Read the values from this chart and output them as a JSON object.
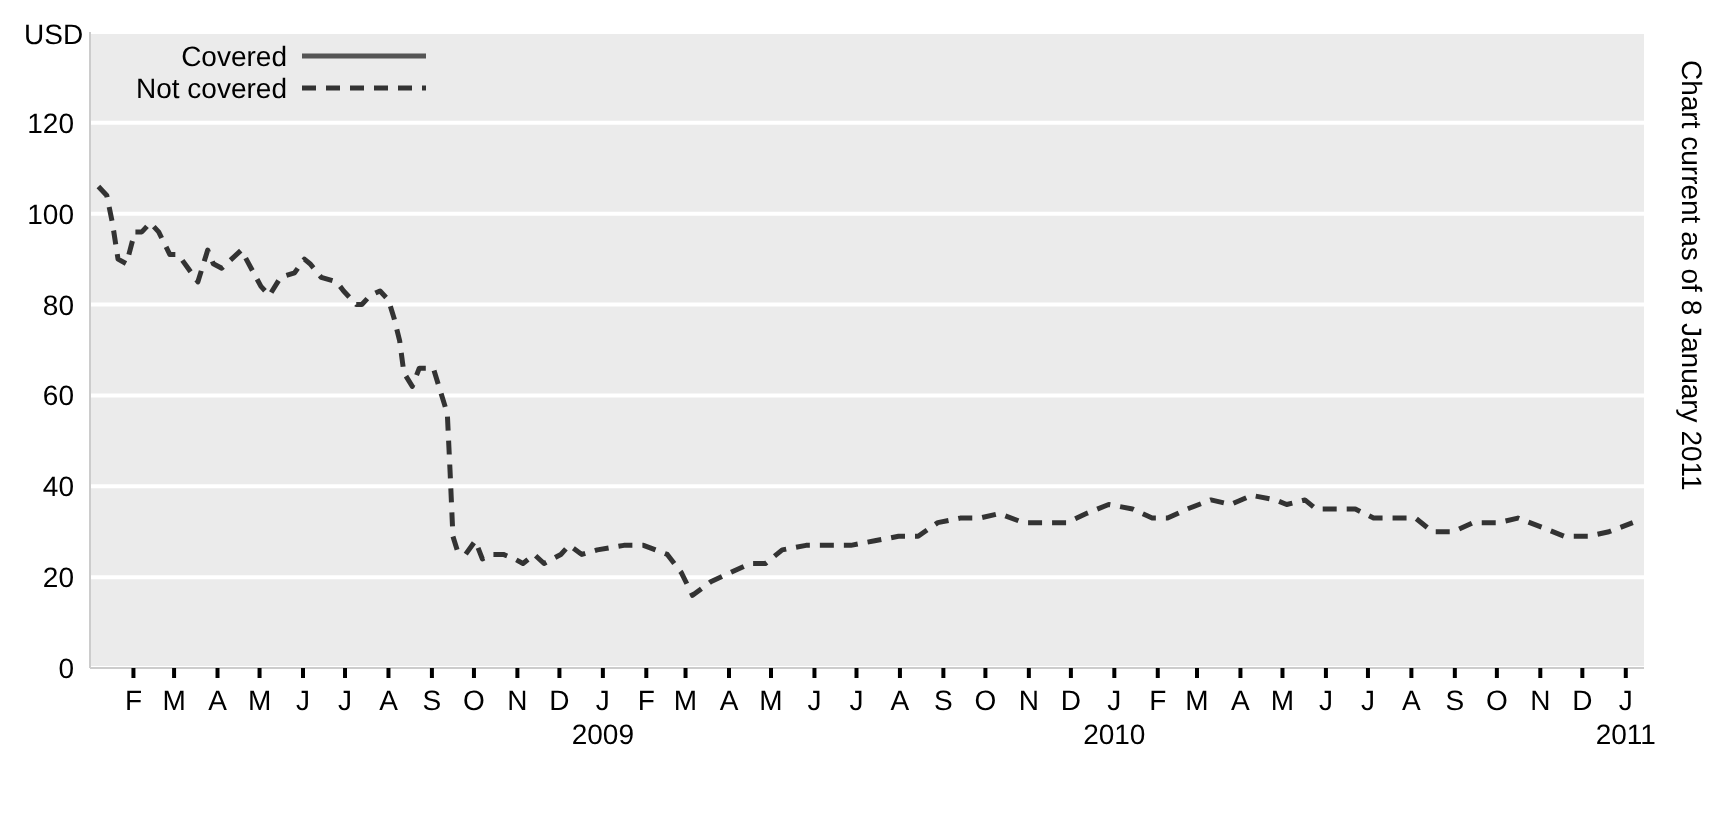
{
  "chart_data": {
    "type": "line",
    "ylabel": "USD",
    "annotations": [
      "Chart current as of 8 January 2011"
    ],
    "x": [
      "2008-01-07",
      "2008-01-13",
      "2008-01-17",
      "2008-01-21",
      "2008-01-27",
      "2008-02-02",
      "2008-02-07",
      "2008-02-13",
      "2008-02-19",
      "2008-02-27",
      "2008-03-04",
      "2008-03-11",
      "2008-03-18",
      "2008-03-25",
      "2008-03-29",
      "2008-04-04",
      "2008-04-11",
      "2008-04-18",
      "2008-04-25",
      "2008-05-02",
      "2008-05-08",
      "2008-05-16",
      "2008-05-26",
      "2008-06-02",
      "2008-06-06",
      "2008-06-14",
      "2008-06-25",
      "2008-06-30",
      "2008-07-09",
      "2008-07-13",
      "2008-07-19",
      "2008-07-26",
      "2008-08-01",
      "2008-08-05",
      "2008-08-09",
      "2008-08-12",
      "2008-08-18",
      "2008-08-23",
      "2008-09-02",
      "2008-09-06",
      "2008-09-12",
      "2008-09-14",
      "2008-09-16",
      "2008-09-19",
      "2008-09-25",
      "2008-10-02",
      "2008-10-07",
      "2008-10-14",
      "2008-10-22",
      "2008-10-30",
      "2008-11-05",
      "2008-11-13",
      "2008-11-20",
      "2008-12-02",
      "2008-12-08",
      "2008-12-17",
      "2008-12-28",
      "2009-01-16",
      "2009-01-30",
      "2009-02-16",
      "2009-02-26",
      "2009-03-06",
      "2009-03-19",
      "2009-04-02",
      "2009-04-16",
      "2009-04-27",
      "2009-05-09",
      "2009-05-26",
      "2009-06-12",
      "2009-06-27",
      "2009-07-14",
      "2009-07-31",
      "2009-08-14",
      "2009-08-28",
      "2009-09-13",
      "2009-09-27",
      "2009-10-11",
      "2009-10-28",
      "2009-11-11",
      "2009-11-28",
      "2009-12-12",
      "2009-12-28",
      "2010-01-14",
      "2010-01-28",
      "2010-02-08",
      "2010-02-22",
      "2010-03-11",
      "2010-03-25",
      "2010-04-09",
      "2010-04-26",
      "2010-05-04",
      "2010-05-17",
      "2010-05-25",
      "2010-06-08",
      "2010-06-22",
      "2010-07-05",
      "2010-07-21",
      "2010-08-04",
      "2010-08-16",
      "2010-08-31",
      "2010-09-14",
      "2010-10-02",
      "2010-10-16",
      "2010-11-02",
      "2010-11-18",
      "2010-12-05",
      "2010-12-20",
      "2011-01-06"
    ],
    "series": [
      {
        "name": "Covered",
        "color": "#555555",
        "line_style": "solid",
        "values": [
          null,
          null,
          null,
          null,
          null,
          null,
          null,
          null,
          null,
          null,
          null,
          null,
          null,
          null,
          null,
          null,
          null,
          null,
          null,
          null,
          null,
          null,
          null,
          null,
          null,
          null,
          null,
          null,
          null,
          null,
          null,
          null,
          null,
          null,
          null,
          null,
          null,
          null,
          null,
          null,
          null,
          null,
          null,
          null,
          null,
          null,
          null,
          null,
          null,
          null,
          null,
          null,
          null,
          null,
          null,
          null,
          null,
          null,
          null,
          null,
          null,
          null,
          null,
          null,
          null,
          null,
          null,
          null,
          null,
          null,
          null,
          null,
          null,
          null,
          null,
          null,
          null,
          null,
          null,
          null,
          null,
          null,
          null,
          null,
          null,
          null,
          null,
          null,
          null,
          null,
          null,
          null,
          null,
          null,
          null,
          null,
          null,
          null,
          null,
          null,
          null,
          null,
          null,
          null,
          null,
          null,
          null,
          null
        ]
      },
      {
        "name": "Not covered",
        "color": "#333333",
        "line_style": "dashed",
        "values": [
          106,
          104,
          98,
          90,
          89,
          96,
          96,
          98,
          96,
          91,
          91,
          88,
          85,
          92,
          89,
          88,
          90,
          92,
          88,
          84,
          82,
          86,
          87,
          90,
          89,
          86,
          85,
          83,
          80,
          80,
          82,
          83,
          81,
          77,
          72,
          65,
          62,
          66,
          66,
          62,
          56,
          43,
          29,
          26,
          25,
          28,
          24,
          25,
          25,
          24,
          23,
          25,
          23,
          25,
          27,
          25,
          26,
          27,
          27,
          25,
          21,
          16,
          19,
          21,
          23,
          23,
          26,
          27,
          27,
          27,
          28,
          29,
          29,
          32,
          33,
          33,
          34,
          32,
          32,
          32,
          34,
          36,
          35,
          33,
          33,
          35,
          37,
          36,
          38,
          37,
          36,
          37,
          35,
          35,
          35,
          33,
          33,
          33,
          30,
          30,
          32,
          32,
          33,
          31,
          29,
          29,
          30,
          32
        ]
      }
    ],
    "xlim": [
      "2008-01-01",
      "2011-01-14"
    ],
    "xticks": [
      {
        "value": "2008-02",
        "label": "F"
      },
      {
        "value": "2008-03",
        "label": "M"
      },
      {
        "value": "2008-04",
        "label": "A"
      },
      {
        "value": "2008-05",
        "label": "M"
      },
      {
        "value": "2008-06",
        "label": "J"
      },
      {
        "value": "2008-07",
        "label": "J"
      },
      {
        "value": "2008-08",
        "label": "A"
      },
      {
        "value": "2008-09",
        "label": "S"
      },
      {
        "value": "2008-10",
        "label": "O"
      },
      {
        "value": "2008-11",
        "label": "N"
      },
      {
        "value": "2008-12",
        "label": "D"
      },
      {
        "value": "2009-01",
        "label": "J\n2009"
      },
      {
        "value": "2009-02",
        "label": "F"
      },
      {
        "value": "2009-03",
        "label": "M"
      },
      {
        "value": "2009-04",
        "label": "A"
      },
      {
        "value": "2009-05",
        "label": "M"
      },
      {
        "value": "2009-06",
        "label": "J"
      },
      {
        "value": "2009-07",
        "label": "J"
      },
      {
        "value": "2009-08",
        "label": "A"
      },
      {
        "value": "2009-09",
        "label": "S"
      },
      {
        "value": "2009-10",
        "label": "O"
      },
      {
        "value": "2009-11",
        "label": "N"
      },
      {
        "value": "2009-12",
        "label": "D"
      },
      {
        "value": "2010-01",
        "label": "J\n2010"
      },
      {
        "value": "2010-02",
        "label": "F"
      },
      {
        "value": "2010-03",
        "label": "M"
      },
      {
        "value": "2010-04",
        "label": "A"
      },
      {
        "value": "2010-05",
        "label": "M"
      },
      {
        "value": "2010-06",
        "label": "J"
      },
      {
        "value": "2010-07",
        "label": "J"
      },
      {
        "value": "2010-08",
        "label": "A"
      },
      {
        "value": "2010-09",
        "label": "S"
      },
      {
        "value": "2010-10",
        "label": "O"
      },
      {
        "value": "2010-11",
        "label": "N"
      },
      {
        "value": "2010-12",
        "label": "D"
      },
      {
        "value": "2011-01",
        "label": "J\n2011"
      }
    ],
    "ylim": [
      0,
      140
    ],
    "yticks": [
      0,
      20,
      40,
      60,
      80,
      100,
      120
    ],
    "grid": "y",
    "legend": "top left"
  }
}
